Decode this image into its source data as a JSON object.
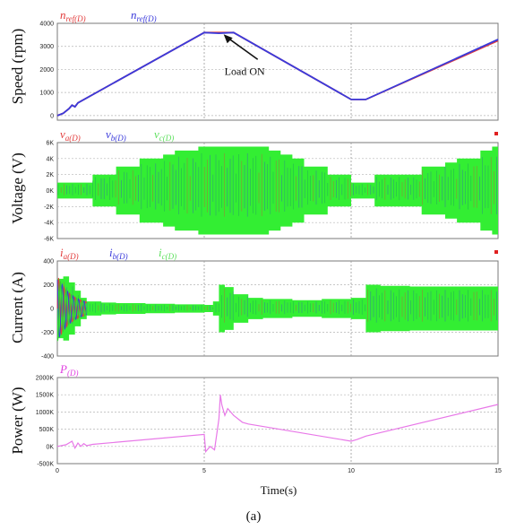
{
  "figure": {
    "caption": "(a)",
    "xlabel": "Time(s)"
  },
  "chart_data": [
    {
      "type": "line",
      "ylabel": "Speed (rpm)",
      "ylim": [
        -200,
        4000
      ],
      "yticks": [
        "4000",
        "3000",
        "2000",
        "1000",
        "0"
      ],
      "yticks_values": [
        4000,
        3000,
        2000,
        1000,
        0
      ],
      "xlim": [
        0,
        15
      ],
      "grid": true,
      "legend": [
        {
          "base": "n",
          "sub": "ref(D)",
          "color": "#e23b3b"
        },
        {
          "base": "n",
          "sub": "ref(D)",
          "color": "#3a3adb"
        }
      ],
      "annotation": {
        "text": "Load ON",
        "x": 5.6,
        "y": 3600
      },
      "series": [
        {
          "color": "#e23b3b",
          "x": [
            0,
            0.2,
            0.4,
            0.5,
            0.6,
            0.7,
            5,
            5.5,
            6,
            10,
            10.5,
            15
          ],
          "y": [
            0,
            100,
            300,
            450,
            380,
            550,
            3600,
            3600,
            3600,
            700,
            700,
            3250
          ]
        },
        {
          "color": "#3a3adb",
          "x": [
            0,
            0.2,
            0.4,
            0.5,
            0.6,
            0.7,
            5,
            5.5,
            6,
            10,
            10.5,
            15
          ],
          "y": [
            0,
            100,
            300,
            450,
            380,
            550,
            3600,
            3570,
            3600,
            700,
            700,
            3300
          ]
        }
      ]
    },
    {
      "type": "area",
      "ylabel": "Voltage (V)",
      "ylim": [
        -6000,
        6000
      ],
      "yticks": [
        "6K",
        "4K",
        "2K",
        "0K",
        "-2K",
        "-4K",
        "-6K"
      ],
      "yticks_values": [
        6000,
        4000,
        2000,
        0,
        -2000,
        -4000,
        -6000
      ],
      "xlim": [
        0,
        15
      ],
      "grid": true,
      "legend": [
        {
          "base": "v",
          "sub": "a(D)",
          "color": "#e23b3b"
        },
        {
          "base": "v",
          "sub": "b(D)",
          "color": "#3a3adb"
        },
        {
          "base": "v",
          "sub": "c(D)",
          "color": "#5ee05e"
        }
      ],
      "envelope": {
        "x": [
          0,
          0.4,
          0.8,
          1.2,
          1.6,
          2.0,
          2.4,
          2.8,
          3.2,
          3.6,
          4.0,
          4.4,
          4.8,
          5.2,
          5.6,
          6.0,
          6.4,
          6.8,
          7.2,
          7.6,
          8.0,
          8.4,
          8.8,
          9.2,
          9.6,
          10.0,
          10.4,
          10.8,
          11.2,
          11.6,
          12.0,
          12.4,
          12.8,
          13.2,
          13.6,
          14.0,
          14.4,
          14.8,
          15.0
        ],
        "y": [
          1000,
          1000,
          1000,
          2000,
          2000,
          3000,
          3000,
          4000,
          4000,
          4500,
          5000,
          5000,
          5500,
          5500,
          5500,
          5500,
          5500,
          5500,
          5000,
          4500,
          4000,
          3000,
          3000,
          2000,
          2000,
          1000,
          1000,
          2000,
          2000,
          2000,
          2000,
          3000,
          3000,
          3500,
          4000,
          4000,
          5000,
          5500,
          5500
        ]
      }
    },
    {
      "type": "area",
      "ylabel": "Current (A)",
      "ylim": [
        -400,
        400
      ],
      "yticks": [
        "400",
        "200",
        "0",
        "-200",
        "-400"
      ],
      "yticks_values": [
        400,
        200,
        0,
        -200,
        -400
      ],
      "xlim": [
        0,
        15
      ],
      "grid": true,
      "legend": [
        {
          "base": "i",
          "sub": "a(D)",
          "color": "#e23b3b"
        },
        {
          "base": "i",
          "sub": "b(D)",
          "color": "#3a3adb"
        },
        {
          "base": "i",
          "sub": "c(D)",
          "color": "#5ee05e"
        }
      ],
      "envelope": {
        "x": [
          0,
          0.2,
          0.4,
          0.6,
          0.8,
          1.0,
          1.5,
          2.0,
          3.0,
          4.0,
          5.0,
          5.3,
          5.5,
          5.7,
          6.0,
          6.5,
          7.0,
          8.0,
          9.0,
          10.0,
          10.5,
          11.0,
          12.0,
          13.0,
          14.0,
          15.0
        ],
        "y": [
          250,
          270,
          220,
          150,
          90,
          60,
          50,
          45,
          40,
          35,
          30,
          60,
          200,
          180,
          120,
          90,
          80,
          70,
          80,
          90,
          200,
          190,
          185,
          185,
          185,
          185
        ]
      }
    },
    {
      "type": "line",
      "ylabel": "Power (W)",
      "ylim": [
        -500000,
        2000000
      ],
      "yticks": [
        "2000K",
        "1500K",
        "1000K",
        "500K",
        "0K",
        "-500K"
      ],
      "yticks_values": [
        2000000,
        1500000,
        1000000,
        500000,
        0,
        -500000
      ],
      "xlim": [
        0,
        15
      ],
      "xticks": [
        "0",
        "5",
        "10",
        "15"
      ],
      "xticks_values": [
        0,
        5,
        10,
        15
      ],
      "grid": true,
      "legend": [
        {
          "base": "P",
          "sub": "(D)",
          "color": "#e040e0"
        }
      ],
      "series": [
        {
          "color": "#e878e8",
          "x": [
            0,
            0.3,
            0.5,
            0.6,
            0.7,
            0.8,
            0.9,
            1.0,
            1.2,
            5.0,
            5.05,
            5.2,
            5.35,
            5.5,
            5.55,
            5.6,
            5.7,
            5.8,
            5.9,
            6.0,
            6.3,
            6.5,
            10.0,
            10.2,
            10.5,
            15.0
          ],
          "y": [
            0,
            50000,
            150000,
            -50000,
            100000,
            0,
            80000,
            20000,
            60000,
            350000,
            -150000,
            0,
            -100000,
            800000,
            1500000,
            1200000,
            900000,
            1100000,
            1000000,
            900000,
            700000,
            650000,
            150000,
            200000,
            300000,
            1220000
          ]
        }
      ]
    }
  ]
}
